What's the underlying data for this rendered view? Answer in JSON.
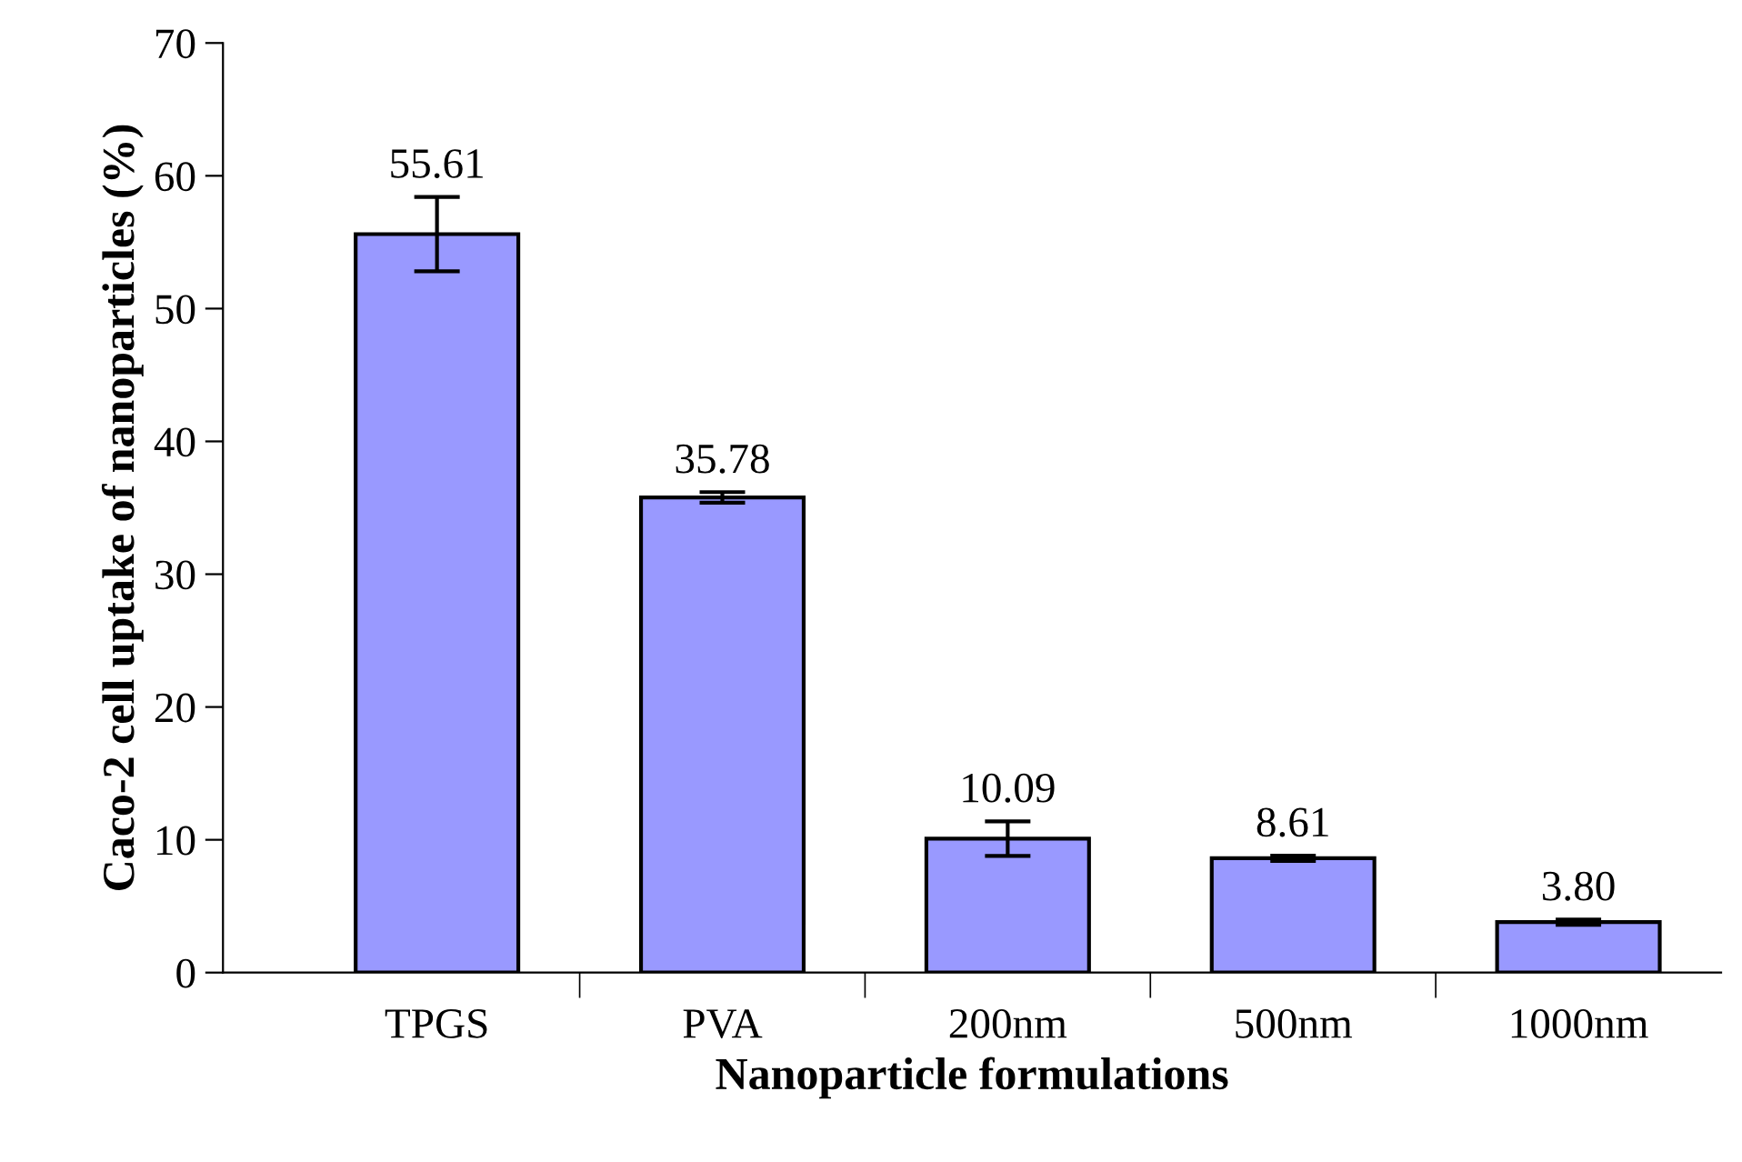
{
  "chart_data": {
    "type": "bar",
    "xlabel": "Nanoparticle formulations",
    "ylabel": "Caco-2 cell uptake of nanoparticles (%)",
    "categories": [
      "TPGS",
      "PVA",
      "200nm",
      "500nm",
      "1000nm"
    ],
    "values": [
      55.61,
      35.78,
      10.09,
      8.61,
      3.8
    ],
    "value_labels": [
      "55.61",
      "35.78",
      "10.09",
      "8.61",
      "3.80"
    ],
    "errors": [
      2.8,
      0.4,
      1.3,
      0.2,
      0.2
    ],
    "color": "#9999ff",
    "ylim": [
      0,
      70
    ],
    "yticks": [
      0,
      10,
      20,
      30,
      40,
      50,
      60,
      70
    ],
    "grid": false,
    "legend": false
  }
}
